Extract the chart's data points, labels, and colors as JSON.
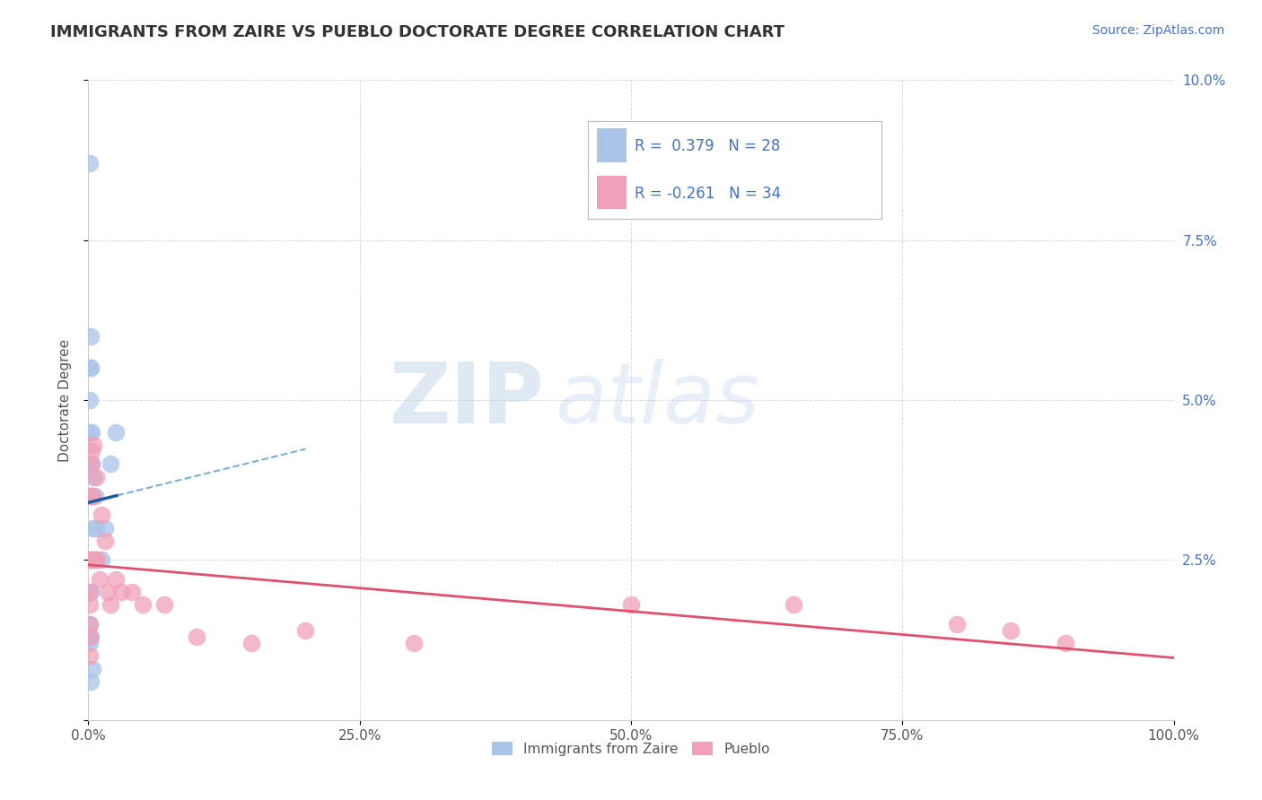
{
  "title": "IMMIGRANTS FROM ZAIRE VS PUEBLO DOCTORATE DEGREE CORRELATION CHART",
  "source_text": "Source: ZipAtlas.com",
  "ylabel": "Doctorate Degree",
  "background_color": "#ffffff",
  "grid_color": "#cccccc",
  "watermark_zip": "ZIP",
  "watermark_atlas": "atlas",
  "blue_scatter_x": [
    0.001,
    0.001,
    0.001,
    0.001,
    0.001,
    0.001,
    0.002,
    0.002,
    0.002,
    0.002,
    0.003,
    0.003,
    0.004,
    0.004,
    0.004,
    0.005,
    0.005,
    0.006,
    0.007,
    0.007,
    0.012,
    0.015,
    0.02,
    0.025,
    0.001,
    0.001,
    0.001,
    0.002
  ],
  "blue_scatter_y": [
    0.087,
    0.055,
    0.05,
    0.045,
    0.04,
    0.035,
    0.06,
    0.055,
    0.02,
    0.013,
    0.045,
    0.04,
    0.035,
    0.03,
    0.008,
    0.038,
    0.025,
    0.035,
    0.03,
    0.025,
    0.025,
    0.03,
    0.04,
    0.045,
    0.015,
    0.013,
    0.012,
    0.006
  ],
  "pink_scatter_x": [
    0.001,
    0.001,
    0.001,
    0.002,
    0.002,
    0.003,
    0.003,
    0.004,
    0.005,
    0.006,
    0.007,
    0.008,
    0.01,
    0.012,
    0.015,
    0.018,
    0.02,
    0.025,
    0.03,
    0.04,
    0.05,
    0.07,
    0.1,
    0.15,
    0.2,
    0.3,
    0.5,
    0.65,
    0.8,
    0.85,
    0.9,
    0.001,
    0.001,
    0.001
  ],
  "pink_scatter_y": [
    0.025,
    0.02,
    0.015,
    0.035,
    0.025,
    0.042,
    0.04,
    0.035,
    0.043,
    0.025,
    0.038,
    0.025,
    0.022,
    0.032,
    0.028,
    0.02,
    0.018,
    0.022,
    0.02,
    0.02,
    0.018,
    0.018,
    0.013,
    0.012,
    0.014,
    0.012,
    0.018,
    0.018,
    0.015,
    0.014,
    0.012,
    0.018,
    0.013,
    0.01
  ],
  "blue_color": "#aac4e8",
  "pink_color": "#f0a0b8",
  "blue_line_color": "#1e5ca8",
  "pink_line_color": "#e05070",
  "blue_dash_color": "#7ab0d8",
  "xlim": [
    0.0,
    1.0
  ],
  "ylim": [
    0.0,
    0.1
  ],
  "xticks": [
    0.0,
    0.25,
    0.5,
    0.75,
    1.0
  ],
  "xtick_labels": [
    "0.0%",
    "25.0%",
    "50.0%",
    "75.0%",
    "100.0%"
  ],
  "yticks": [
    0.0,
    0.025,
    0.05,
    0.075,
    0.1
  ],
  "ytick_labels_right": [
    "",
    "2.5%",
    "5.0%",
    "7.5%",
    "10.0%"
  ],
  "legend_labels": [
    "Immigrants from Zaire",
    "Pueblo"
  ],
  "title_fontsize": 13,
  "axis_fontsize": 11,
  "tick_fontsize": 11,
  "source_fontsize": 10
}
